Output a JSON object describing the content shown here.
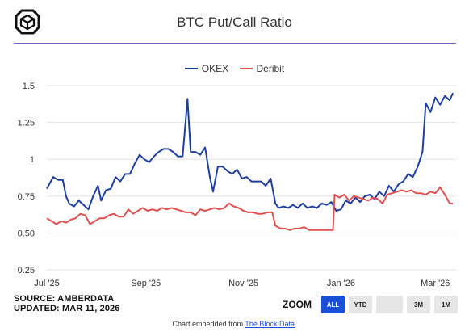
{
  "header": {
    "title": "BTC Put/Call Ratio"
  },
  "legend": [
    {
      "name": "OKEX",
      "color": "#1e3fa0"
    },
    {
      "name": "Deribit",
      "color": "#e05050"
    }
  ],
  "footer": {
    "source": "SOURCE: AMBERDATA",
    "updated": "UPDATED: MAR 11, 2026",
    "embed_prefix": "Chart embedded from ",
    "embed_link": "The Block Data",
    "embed_suffix": "."
  },
  "zoom": {
    "label": "ZOOM",
    "buttons": [
      {
        "label": "ALL",
        "active": true
      },
      {
        "label": "YTD",
        "active": false
      },
      {
        "label": "",
        "active": false
      },
      {
        "label": "3M",
        "active": false
      },
      {
        "label": "1M",
        "active": false
      }
    ]
  },
  "chart_data": {
    "type": "line",
    "title": "BTC Put/Call Ratio",
    "xlabel": "",
    "ylabel": "",
    "ylim": [
      0.25,
      1.5
    ],
    "yticks": [
      0.25,
      0.5,
      0.75,
      1,
      1.25,
      1.5
    ],
    "ytick_labels": [
      "0.25",
      "0.50",
      "0.75",
      "1",
      "1.25",
      "1.5"
    ],
    "xlim": [
      "2025-07-01",
      "2026-03-14"
    ],
    "xticks": [
      "2025-07-01",
      "2025-09-01",
      "2025-11-01",
      "2026-01-01",
      "2026-03-01"
    ],
    "xtick_labels": [
      "Jul '25",
      "Sep '25",
      "Nov '25",
      "Jan '26",
      "Mar '26"
    ],
    "grid": true,
    "legend_position": "top-center",
    "series": [
      {
        "name": "OKEX",
        "color": "#1e3fa0",
        "points": [
          [
            "2025-07-01",
            0.8
          ],
          [
            "2025-07-03",
            0.84
          ],
          [
            "2025-07-05",
            0.88
          ],
          [
            "2025-07-08",
            0.86
          ],
          [
            "2025-07-11",
            0.86
          ],
          [
            "2025-07-13",
            0.75
          ],
          [
            "2025-07-15",
            0.7
          ],
          [
            "2025-07-18",
            0.68
          ],
          [
            "2025-07-21",
            0.72
          ],
          [
            "2025-07-24",
            0.69
          ],
          [
            "2025-07-27",
            0.66
          ],
          [
            "2025-07-30",
            0.75
          ],
          [
            "2025-08-02",
            0.82
          ],
          [
            "2025-08-04",
            0.72
          ],
          [
            "2025-08-07",
            0.79
          ],
          [
            "2025-08-10",
            0.8
          ],
          [
            "2025-08-13",
            0.88
          ],
          [
            "2025-08-16",
            0.85
          ],
          [
            "2025-08-19",
            0.9
          ],
          [
            "2025-08-22",
            0.9
          ],
          [
            "2025-08-25",
            0.97
          ],
          [
            "2025-08-28",
            1.03
          ],
          [
            "2025-08-31",
            1.0
          ],
          [
            "2025-09-03",
            0.98
          ],
          [
            "2025-09-06",
            1.02
          ],
          [
            "2025-09-09",
            1.05
          ],
          [
            "2025-09-12",
            1.07
          ],
          [
            "2025-09-15",
            1.07
          ],
          [
            "2025-09-18",
            1.05
          ],
          [
            "2025-09-21",
            1.02
          ],
          [
            "2025-09-24",
            1.02
          ],
          [
            "2025-09-27",
            1.41
          ],
          [
            "2025-09-29",
            1.05
          ],
          [
            "2025-10-02",
            1.05
          ],
          [
            "2025-10-05",
            1.03
          ],
          [
            "2025-10-08",
            1.08
          ],
          [
            "2025-10-11",
            0.88
          ],
          [
            "2025-10-13",
            0.78
          ],
          [
            "2025-10-16",
            0.95
          ],
          [
            "2025-10-19",
            0.95
          ],
          [
            "2025-10-22",
            0.92
          ],
          [
            "2025-10-25",
            0.9
          ],
          [
            "2025-10-28",
            0.93
          ],
          [
            "2025-10-31",
            0.87
          ],
          [
            "2025-11-03",
            0.88
          ],
          [
            "2025-11-06",
            0.85
          ],
          [
            "2025-11-09",
            0.85
          ],
          [
            "2025-11-12",
            0.85
          ],
          [
            "2025-11-15",
            0.82
          ],
          [
            "2025-11-18",
            0.87
          ],
          [
            "2025-11-21",
            0.7
          ],
          [
            "2025-11-23",
            0.67
          ],
          [
            "2025-11-26",
            0.68
          ],
          [
            "2025-11-29",
            0.67
          ],
          [
            "2025-12-02",
            0.69
          ],
          [
            "2025-12-05",
            0.67
          ],
          [
            "2025-12-08",
            0.7
          ],
          [
            "2025-12-11",
            0.67
          ],
          [
            "2025-12-14",
            0.68
          ],
          [
            "2025-12-17",
            0.67
          ],
          [
            "2025-12-20",
            0.7
          ],
          [
            "2025-12-23",
            0.69
          ],
          [
            "2025-12-26",
            0.71
          ],
          [
            "2025-12-29",
            0.65
          ],
          [
            "2026-01-01",
            0.66
          ],
          [
            "2026-01-04",
            0.72
          ],
          [
            "2026-01-07",
            0.7
          ],
          [
            "2026-01-10",
            0.74
          ],
          [
            "2026-01-13",
            0.71
          ],
          [
            "2026-01-16",
            0.75
          ],
          [
            "2026-01-19",
            0.76
          ],
          [
            "2026-01-22",
            0.73
          ],
          [
            "2026-01-25",
            0.78
          ],
          [
            "2026-01-28",
            0.75
          ],
          [
            "2026-01-31",
            0.82
          ],
          [
            "2026-02-03",
            0.78
          ],
          [
            "2026-02-06",
            0.83
          ],
          [
            "2026-02-09",
            0.85
          ],
          [
            "2026-02-12",
            0.9
          ],
          [
            "2026-02-15",
            0.88
          ],
          [
            "2026-02-18",
            0.95
          ],
          [
            "2026-02-21",
            1.05
          ],
          [
            "2026-02-23",
            1.38
          ],
          [
            "2026-02-26",
            1.32
          ],
          [
            "2026-03-01",
            1.42
          ],
          [
            "2026-03-04",
            1.37
          ],
          [
            "2026-03-07",
            1.43
          ],
          [
            "2026-03-10",
            1.4
          ],
          [
            "2026-03-12",
            1.45
          ]
        ]
      },
      {
        "name": "Deribit",
        "color": "#e05050",
        "points": [
          [
            "2025-07-01",
            0.6
          ],
          [
            "2025-07-04",
            0.58
          ],
          [
            "2025-07-07",
            0.56
          ],
          [
            "2025-07-10",
            0.58
          ],
          [
            "2025-07-13",
            0.57
          ],
          [
            "2025-07-16",
            0.59
          ],
          [
            "2025-07-19",
            0.6
          ],
          [
            "2025-07-22",
            0.63
          ],
          [
            "2025-07-25",
            0.62
          ],
          [
            "2025-07-28",
            0.56
          ],
          [
            "2025-07-31",
            0.58
          ],
          [
            "2025-08-03",
            0.6
          ],
          [
            "2025-08-06",
            0.6
          ],
          [
            "2025-08-09",
            0.62
          ],
          [
            "2025-08-12",
            0.63
          ],
          [
            "2025-08-15",
            0.61
          ],
          [
            "2025-08-18",
            0.61
          ],
          [
            "2025-08-21",
            0.66
          ],
          [
            "2025-08-24",
            0.63
          ],
          [
            "2025-08-27",
            0.65
          ],
          [
            "2025-08-30",
            0.67
          ],
          [
            "2025-09-02",
            0.65
          ],
          [
            "2025-09-05",
            0.66
          ],
          [
            "2025-09-08",
            0.65
          ],
          [
            "2025-09-11",
            0.67
          ],
          [
            "2025-09-14",
            0.66
          ],
          [
            "2025-09-17",
            0.67
          ],
          [
            "2025-09-20",
            0.66
          ],
          [
            "2025-09-23",
            0.65
          ],
          [
            "2025-09-26",
            0.64
          ],
          [
            "2025-09-29",
            0.64
          ],
          [
            "2025-10-02",
            0.62
          ],
          [
            "2025-10-05",
            0.66
          ],
          [
            "2025-10-08",
            0.65
          ],
          [
            "2025-10-11",
            0.66
          ],
          [
            "2025-10-14",
            0.67
          ],
          [
            "2025-10-17",
            0.66
          ],
          [
            "2025-10-20",
            0.67
          ],
          [
            "2025-10-23",
            0.7
          ],
          [
            "2025-10-26",
            0.68
          ],
          [
            "2025-10-29",
            0.67
          ],
          [
            "2025-11-01",
            0.65
          ],
          [
            "2025-11-04",
            0.64
          ],
          [
            "2025-11-07",
            0.64
          ],
          [
            "2025-11-10",
            0.63
          ],
          [
            "2025-11-13",
            0.63
          ],
          [
            "2025-11-16",
            0.64
          ],
          [
            "2025-11-19",
            0.64
          ],
          [
            "2025-11-21",
            0.55
          ],
          [
            "2025-11-24",
            0.53
          ],
          [
            "2025-11-27",
            0.53
          ],
          [
            "2025-11-30",
            0.52
          ],
          [
            "2025-12-03",
            0.53
          ],
          [
            "2025-12-06",
            0.53
          ],
          [
            "2025-12-09",
            0.54
          ],
          [
            "2025-12-12",
            0.52
          ],
          [
            "2025-12-15",
            0.52
          ],
          [
            "2025-12-18",
            0.52
          ],
          [
            "2025-12-21",
            0.52
          ],
          [
            "2025-12-24",
            0.52
          ],
          [
            "2025-12-27",
            0.52
          ],
          [
            "2025-12-28",
            0.76
          ],
          [
            "2025-12-31",
            0.74
          ],
          [
            "2026-01-03",
            0.76
          ],
          [
            "2026-01-06",
            0.72
          ],
          [
            "2026-01-09",
            0.75
          ],
          [
            "2026-01-12",
            0.74
          ],
          [
            "2026-01-15",
            0.73
          ],
          [
            "2026-01-18",
            0.72
          ],
          [
            "2026-01-21",
            0.74
          ],
          [
            "2026-01-24",
            0.73
          ],
          [
            "2026-01-27",
            0.7
          ],
          [
            "2026-01-30",
            0.76
          ],
          [
            "2026-02-02",
            0.77
          ],
          [
            "2026-02-05",
            0.78
          ],
          [
            "2026-02-08",
            0.79
          ],
          [
            "2026-02-11",
            0.78
          ],
          [
            "2026-02-14",
            0.79
          ],
          [
            "2026-02-17",
            0.77
          ],
          [
            "2026-02-20",
            0.77
          ],
          [
            "2026-02-23",
            0.76
          ],
          [
            "2026-02-26",
            0.78
          ],
          [
            "2026-03-01",
            0.77
          ],
          [
            "2026-03-04",
            0.81
          ],
          [
            "2026-03-07",
            0.76
          ],
          [
            "2026-03-10",
            0.7
          ],
          [
            "2026-03-12",
            0.7
          ]
        ]
      }
    ]
  }
}
